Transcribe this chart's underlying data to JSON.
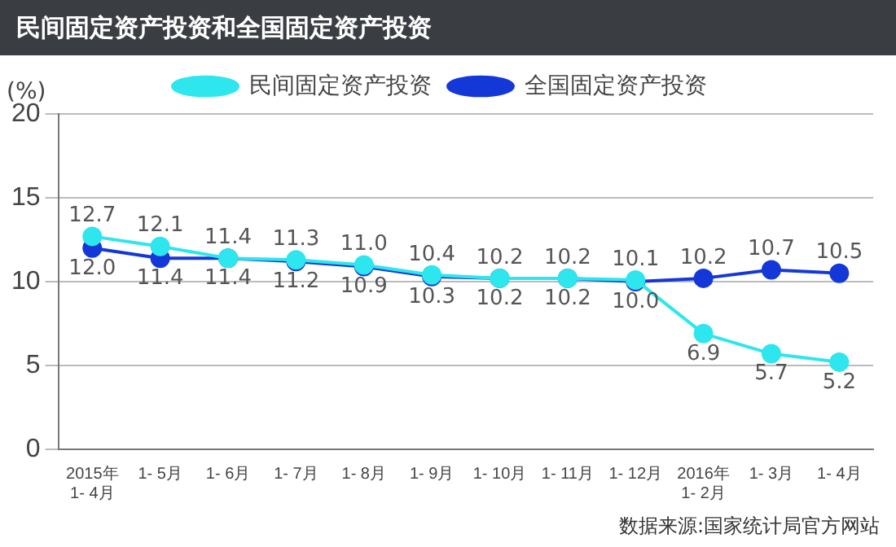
{
  "chart_data": {
    "type": "line",
    "title": "民间固定资产投资和全国固定资产投资",
    "ylabel": "(%)",
    "categories": [
      "2015年\n1- 4月",
      "1- 5月",
      "1- 6月",
      "1- 7月",
      "1- 8月",
      "1- 9月",
      "1- 10月",
      "1- 11月",
      "1- 12月",
      "2016年\n1- 2月",
      "1- 3月",
      "1- 4月"
    ],
    "series": [
      {
        "name": "民间固定资产投资",
        "color": "#2ee6ee",
        "values": [
          12.7,
          12.1,
          11.4,
          11.3,
          11.0,
          10.4,
          10.2,
          10.2,
          10.1,
          6.9,
          5.7,
          5.2
        ],
        "value_labels": [
          "12.7",
          "12.1",
          "11.4",
          "11.3",
          "11.0",
          "10.4",
          "10.2",
          "10.2",
          "10.1",
          "6.9",
          "5.7",
          "5.2"
        ]
      },
      {
        "name": "全国固定资产投资",
        "color": "#1438d8",
        "values": [
          12.0,
          11.4,
          11.4,
          11.2,
          10.9,
          10.3,
          10.2,
          10.2,
          10.0,
          10.2,
          10.7,
          10.5
        ],
        "value_labels": [
          "12.0",
          "11.4",
          "11.4",
          "11.2",
          "10.9",
          "10.3",
          "10.2",
          "10.2",
          "10.0",
          "10.2",
          "10.7",
          "10.5"
        ]
      }
    ],
    "ylim": [
      0,
      20
    ],
    "yticks": [
      0,
      5,
      10,
      15,
      20
    ],
    "grid": "y",
    "legend": "top",
    "marker": "circle",
    "annotations": [
      "数据来源:国家统计局官方网站"
    ]
  }
}
